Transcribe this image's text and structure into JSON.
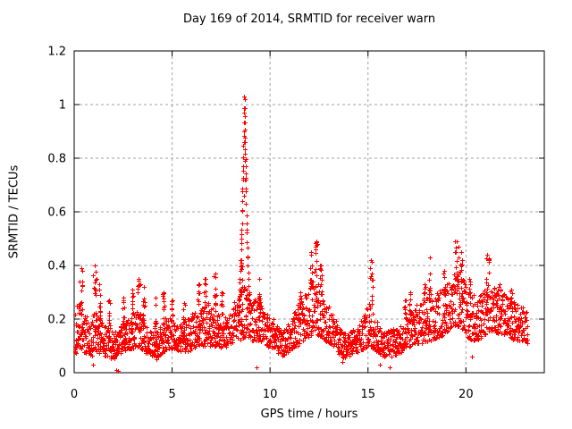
{
  "chart_data": {
    "type": "scatter",
    "title": "Day 169 of 2014, SRMTID for receiver warn",
    "xlabel": "GPS time / hours",
    "ylabel": "SRMTID / TECUs",
    "xlim": [
      0,
      24
    ],
    "ylim": [
      0,
      1.2
    ],
    "xticks": [
      0,
      5,
      10,
      15,
      20
    ],
    "xtick_labels": [
      "0",
      "5",
      "10",
      "15",
      "20"
    ],
    "yticks": [
      0,
      0.2,
      0.4,
      0.6,
      0.8,
      1,
      1.2
    ],
    "ytick_labels": [
      "0",
      "0.2",
      "0.4",
      "0.6",
      "0.8",
      "1",
      "1.2"
    ],
    "grid": true,
    "grid_style": "dashed",
    "grid_color": "#a0a0a0",
    "axis_color": "#000000",
    "background": "#ffffff",
    "legend": "none",
    "marker": {
      "shape": "plus",
      "color": "#ff0000",
      "size": 5
    },
    "x_data_range": [
      0,
      23.2
    ],
    "notable_points": [
      [
        8.68,
        1.03
      ],
      [
        8.7,
        1.02
      ],
      [
        8.72,
        1.02
      ],
      [
        8.66,
        0.97
      ],
      [
        8.65,
        0.9
      ],
      [
        8.69,
        0.86
      ],
      [
        8.7,
        0.79
      ],
      [
        8.71,
        0.72
      ],
      [
        8.68,
        0.66
      ],
      [
        12.35,
        0.49
      ],
      [
        12.3,
        0.47
      ],
      [
        12.1,
        0.45
      ],
      [
        12.6,
        0.4
      ],
      [
        19.55,
        0.49
      ],
      [
        19.6,
        0.47
      ],
      [
        19.5,
        0.45
      ],
      [
        19.75,
        0.45
      ],
      [
        21.1,
        0.44
      ],
      [
        21.15,
        0.42
      ],
      [
        18.15,
        0.43
      ],
      [
        15.15,
        0.42
      ],
      [
        8.55,
        0.42
      ],
      [
        1.05,
        0.4
      ],
      [
        0.35,
        0.39
      ],
      [
        18.9,
        0.38
      ],
      [
        7.2,
        0.37
      ]
    ],
    "low_outliers": [
      [
        0.95,
        0.03
      ],
      [
        2.15,
        0.01
      ],
      [
        2.22,
        0.008
      ],
      [
        4.2,
        0.05
      ],
      [
        9.3,
        0.02
      ],
      [
        13.7,
        0.04
      ],
      [
        15.6,
        0.03
      ],
      [
        16.1,
        0.02
      ],
      [
        20.3,
        0.06
      ]
    ],
    "generator": {
      "seed": 20140169,
      "x_start": 0.03,
      "x_end": 23.15,
      "step": 0.03,
      "points_per_step": 3,
      "band_bias": 1.25,
      "envelope": [
        [
          0.0,
          0.07,
          0.24
        ],
        [
          0.3,
          0.08,
          0.26
        ],
        [
          0.6,
          0.07,
          0.21
        ],
        [
          0.9,
          0.06,
          0.22
        ],
        [
          1.1,
          0.08,
          0.24
        ],
        [
          1.4,
          0.07,
          0.2
        ],
        [
          1.7,
          0.05,
          0.17
        ],
        [
          2.0,
          0.05,
          0.15
        ],
        [
          2.3,
          0.07,
          0.17
        ],
        [
          2.6,
          0.08,
          0.19
        ],
        [
          3.0,
          0.09,
          0.22
        ],
        [
          3.4,
          0.09,
          0.24
        ],
        [
          3.7,
          0.07,
          0.17
        ],
        [
          4.0,
          0.06,
          0.15
        ],
        [
          4.3,
          0.06,
          0.16
        ],
        [
          4.6,
          0.08,
          0.2
        ],
        [
          5.0,
          0.09,
          0.21
        ],
        [
          5.4,
          0.08,
          0.19
        ],
        [
          5.8,
          0.08,
          0.2
        ],
        [
          6.2,
          0.09,
          0.24
        ],
        [
          6.6,
          0.1,
          0.26
        ],
        [
          7.0,
          0.1,
          0.26
        ],
        [
          7.3,
          0.1,
          0.24
        ],
        [
          7.6,
          0.09,
          0.2
        ],
        [
          8.0,
          0.1,
          0.24
        ],
        [
          8.4,
          0.12,
          0.3
        ],
        [
          8.7,
          0.13,
          0.33
        ],
        [
          9.0,
          0.12,
          0.28
        ],
        [
          9.4,
          0.12,
          0.27
        ],
        [
          9.8,
          0.1,
          0.22
        ],
        [
          10.2,
          0.09,
          0.2
        ],
        [
          10.6,
          0.06,
          0.15
        ],
        [
          11.0,
          0.08,
          0.19
        ],
        [
          11.4,
          0.1,
          0.26
        ],
        [
          11.8,
          0.12,
          0.3
        ],
        [
          12.2,
          0.15,
          0.36
        ],
        [
          12.5,
          0.14,
          0.34
        ],
        [
          12.8,
          0.12,
          0.28
        ],
        [
          13.2,
          0.1,
          0.22
        ],
        [
          13.6,
          0.05,
          0.16
        ],
        [
          14.0,
          0.06,
          0.15
        ],
        [
          14.4,
          0.07,
          0.17
        ],
        [
          14.8,
          0.09,
          0.22
        ],
        [
          15.1,
          0.1,
          0.28
        ],
        [
          15.4,
          0.08,
          0.2
        ],
        [
          15.8,
          0.06,
          0.16
        ],
        [
          16.2,
          0.06,
          0.16
        ],
        [
          16.6,
          0.07,
          0.18
        ],
        [
          17.0,
          0.09,
          0.22
        ],
        [
          17.4,
          0.1,
          0.25
        ],
        [
          17.8,
          0.11,
          0.27
        ],
        [
          18.2,
          0.12,
          0.3
        ],
        [
          18.6,
          0.13,
          0.3
        ],
        [
          19.0,
          0.15,
          0.33
        ],
        [
          19.4,
          0.17,
          0.38
        ],
        [
          19.8,
          0.16,
          0.36
        ],
        [
          20.2,
          0.12,
          0.3
        ],
        [
          20.6,
          0.12,
          0.28
        ],
        [
          21.0,
          0.14,
          0.32
        ],
        [
          21.4,
          0.15,
          0.32
        ],
        [
          21.8,
          0.14,
          0.3
        ],
        [
          22.2,
          0.13,
          0.28
        ],
        [
          22.6,
          0.12,
          0.26
        ],
        [
          23.0,
          0.1,
          0.24
        ],
        [
          23.2,
          0.1,
          0.22
        ]
      ],
      "peaks": [
        [
          0.35,
          0.39,
          0.08
        ],
        [
          1.05,
          0.4,
          0.08
        ],
        [
          1.3,
          0.33,
          0.06
        ],
        [
          1.8,
          0.27,
          0.05
        ],
        [
          2.5,
          0.28,
          0.05
        ],
        [
          2.95,
          0.31,
          0.06
        ],
        [
          3.3,
          0.35,
          0.07
        ],
        [
          3.55,
          0.32,
          0.05
        ],
        [
          4.15,
          0.28,
          0.05
        ],
        [
          4.55,
          0.3,
          0.05
        ],
        [
          5.0,
          0.27,
          0.05
        ],
        [
          5.6,
          0.26,
          0.05
        ],
        [
          6.35,
          0.33,
          0.06
        ],
        [
          6.65,
          0.35,
          0.06
        ],
        [
          7.2,
          0.37,
          0.07
        ],
        [
          7.55,
          0.3,
          0.05
        ],
        [
          8.55,
          0.42,
          0.06
        ],
        [
          9.45,
          0.35,
          0.07
        ],
        [
          11.55,
          0.3,
          0.06
        ],
        [
          12.1,
          0.45,
          0.07
        ],
        [
          12.35,
          0.49,
          0.08
        ],
        [
          12.6,
          0.4,
          0.06
        ],
        [
          15.15,
          0.42,
          0.08
        ],
        [
          16.9,
          0.27,
          0.05
        ],
        [
          17.15,
          0.3,
          0.05
        ],
        [
          17.9,
          0.33,
          0.06
        ],
        [
          18.15,
          0.37,
          0.06
        ],
        [
          18.9,
          0.38,
          0.06
        ],
        [
          19.55,
          0.49,
          0.1
        ],
        [
          19.75,
          0.45,
          0.07
        ],
        [
          20.15,
          0.35,
          0.05
        ],
        [
          21.1,
          0.44,
          0.07
        ],
        [
          21.7,
          0.33,
          0.06
        ],
        [
          22.3,
          0.31,
          0.05
        ]
      ],
      "spike": {
        "start": 8.38,
        "peak": 8.68,
        "end": 8.98,
        "max": 1.03,
        "base": 0.25,
        "step": 0.012
      }
    }
  }
}
